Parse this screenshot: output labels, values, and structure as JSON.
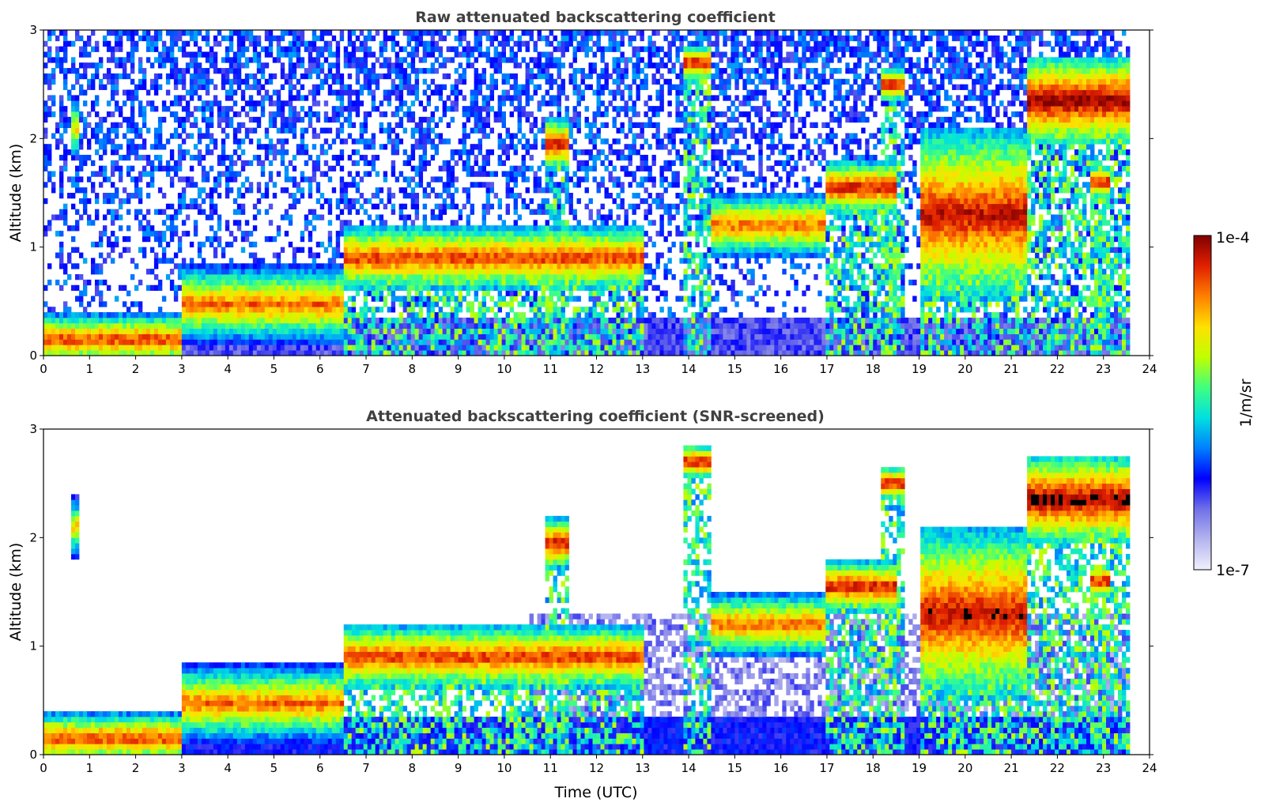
{
  "chart_data": [
    {
      "type": "heatmap",
      "title": "Raw attenuated backscattering coefficient",
      "xlabel": "",
      "ylabel": "Altitude (km)",
      "xlim": [
        0,
        24
      ],
      "ylim": [
        0,
        3
      ],
      "xticks": [
        "0",
        "1",
        "2",
        "3",
        "4",
        "5",
        "6",
        "7",
        "8",
        "9",
        "10",
        "11",
        "12",
        "13",
        "14",
        "15",
        "16",
        "17",
        "18",
        "19",
        "20",
        "21",
        "22",
        "23",
        "24"
      ],
      "yticks": [
        "0",
        "1",
        "2",
        "3"
      ],
      "screened": false,
      "layers": [
        {
          "t0": 0.0,
          "t1": 3.0,
          "base_km": 0.0,
          "top_km": 0.3,
          "level": 0.9
        },
        {
          "t0": 3.0,
          "t1": 6.5,
          "base_km": 0.25,
          "top_km": 0.7,
          "level": 0.85
        },
        {
          "t0": 6.5,
          "t1": 13.0,
          "base_km": 0.7,
          "top_km": 1.1,
          "level": 0.9
        },
        {
          "t0": 14.5,
          "t1": 17.0,
          "base_km": 1.0,
          "top_km": 1.4,
          "level": 0.85
        },
        {
          "t0": 17.0,
          "t1": 18.5,
          "base_km": 1.4,
          "top_km": 1.7,
          "level": 0.95
        },
        {
          "t0": 18.2,
          "t1": 18.7,
          "base_km": 2.4,
          "top_km": 2.6,
          "level": 0.95
        },
        {
          "t0": 19.0,
          "t1": 21.3,
          "base_km": 0.8,
          "top_km": 1.8,
          "level": 0.95
        },
        {
          "t0": 21.3,
          "t1": 23.6,
          "base_km": 2.1,
          "top_km": 2.6,
          "level": 1.0
        },
        {
          "t0": 22.7,
          "t1": 23.1,
          "base_km": 1.5,
          "top_km": 1.7,
          "level": 0.95
        },
        {
          "t0": 13.9,
          "t1": 14.5,
          "base_km": 2.6,
          "top_km": 2.8,
          "level": 0.95
        },
        {
          "t0": 0.6,
          "t1": 0.75,
          "base_km": 1.9,
          "top_km": 2.3,
          "level": 0.75
        },
        {
          "t0": 10.9,
          "t1": 11.4,
          "base_km": 1.8,
          "top_km": 2.1,
          "level": 0.95
        }
      ]
    },
    {
      "type": "heatmap",
      "title": "Attenuated backscattering coefficient (SNR-screened)",
      "xlabel": "Time (UTC)",
      "ylabel": "Altitude (km)",
      "xlim": [
        0,
        24
      ],
      "ylim": [
        0,
        3
      ],
      "xticks": [
        "0",
        "1",
        "2",
        "3",
        "4",
        "5",
        "6",
        "7",
        "8",
        "9",
        "10",
        "11",
        "12",
        "13",
        "14",
        "15",
        "16",
        "17",
        "18",
        "19",
        "20",
        "21",
        "22",
        "23",
        "24"
      ],
      "yticks": [
        "0",
        "1",
        "2",
        "3"
      ],
      "screened": true
    }
  ],
  "colorbar": {
    "label": "1/m/sr",
    "max_label": "1e-4",
    "min_label": "1e-7",
    "vmin": 1e-07,
    "vmax": 0.0001,
    "scale": "log",
    "colormap": [
      "#f0f0fc",
      "#b4b4ee",
      "#7070e8",
      "#0000ff",
      "#0080ff",
      "#00e0e0",
      "#40ff80",
      "#c0ff00",
      "#ffe000",
      "#ff8000",
      "#e02000",
      "#800000"
    ]
  }
}
